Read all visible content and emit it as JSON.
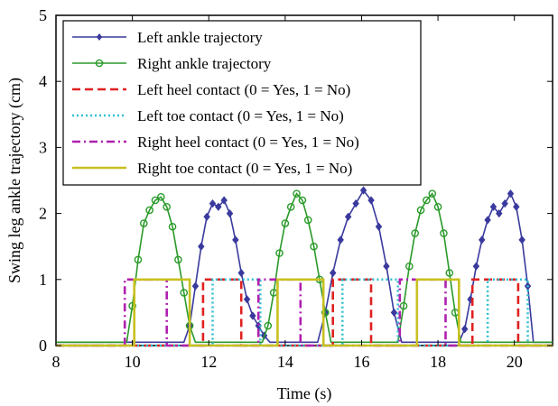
{
  "chart_data": {
    "type": "line",
    "title": "",
    "xlabel": "Time (s)",
    "ylabel": "Swing leg ankle trajectory (cm)",
    "xlim": [
      8,
      21
    ],
    "ylim": [
      0,
      5
    ],
    "xticks": [
      8,
      10,
      12,
      14,
      16,
      18,
      20
    ],
    "yticks": [
      0,
      1,
      2,
      3,
      4,
      5
    ],
    "legend_position": "top-left",
    "grid": false,
    "series": [
      {
        "name": "Left ankle trajectory",
        "color": "#3a3a9e",
        "style": "solid",
        "marker": "diamond",
        "x": [
          8.0,
          11.35,
          11.5,
          11.65,
          11.8,
          11.95,
          12.1,
          12.25,
          12.4,
          12.55,
          12.7,
          12.85,
          13.0,
          13.15,
          13.3,
          13.45,
          13.6,
          14.85,
          15.05,
          15.25,
          15.45,
          15.65,
          15.85,
          16.05,
          16.25,
          16.45,
          16.65,
          16.85,
          17.05,
          18.55,
          18.7,
          18.85,
          19.0,
          19.15,
          19.3,
          19.45,
          19.6,
          19.75,
          19.9,
          20.05,
          20.2,
          20.35,
          20.5,
          21.0
        ],
        "y": [
          0.05,
          0.05,
          0.3,
          0.9,
          1.5,
          1.95,
          2.15,
          2.1,
          2.2,
          2.0,
          1.6,
          1.1,
          0.7,
          0.45,
          0.3,
          0.15,
          0.05,
          0.05,
          0.5,
          1.1,
          1.6,
          1.95,
          2.15,
          2.35,
          2.2,
          1.8,
          1.2,
          0.5,
          0.05,
          0.05,
          0.25,
          0.7,
          1.2,
          1.6,
          1.9,
          2.1,
          2.0,
          2.15,
          2.3,
          2.1,
          1.6,
          0.9,
          0.05,
          0.05
        ]
      },
      {
        "name": "Right ankle trajectory",
        "color": "#2a9a2a",
        "style": "solid",
        "marker": "circle",
        "x": [
          8.0,
          9.85,
          10.0,
          10.15,
          10.3,
          10.45,
          10.6,
          10.75,
          10.9,
          11.05,
          11.2,
          11.35,
          11.5,
          11.65,
          13.4,
          13.55,
          13.7,
          13.85,
          14.0,
          14.15,
          14.3,
          14.45,
          14.6,
          14.75,
          14.9,
          15.05,
          15.2,
          16.95,
          17.1,
          17.25,
          17.4,
          17.55,
          17.7,
          17.85,
          18.0,
          18.15,
          18.3,
          18.45,
          18.6,
          21.0
        ],
        "y": [
          0.05,
          0.05,
          0.6,
          1.3,
          1.85,
          2.05,
          2.2,
          2.25,
          2.1,
          1.8,
          1.3,
          0.8,
          0.3,
          0.05,
          0.05,
          0.3,
          0.8,
          1.4,
          1.85,
          2.1,
          2.3,
          2.2,
          1.9,
          1.5,
          1.0,
          0.5,
          0.05,
          0.05,
          0.6,
          1.2,
          1.7,
          2.05,
          2.2,
          2.3,
          2.1,
          1.7,
          1.1,
          0.5,
          0.05,
          0.05
        ]
      },
      {
        "name": "Left heel contact (0 = Yes, 1 = No)",
        "color": "#e02020",
        "style": "dashed",
        "x": [
          8.0,
          11.85,
          11.85,
          12.85,
          12.85,
          15.25,
          15.25,
          16.25,
          16.25,
          18.9,
          18.9,
          20.1,
          20.1,
          21.0
        ],
        "y": [
          0,
          0,
          1,
          1,
          0,
          0,
          1,
          1,
          0,
          0,
          1,
          1,
          0,
          0
        ]
      },
      {
        "name": "Left toe contact (0 = Yes, 1 = No)",
        "color": "#30c0d0",
        "style": "dotted",
        "x": [
          8.0,
          12.1,
          12.1,
          13.35,
          13.35,
          15.5,
          15.5,
          16.95,
          16.95,
          19.3,
          19.3,
          20.35,
          20.35,
          21.0
        ],
        "y": [
          0,
          0,
          1,
          1,
          0,
          0,
          1,
          1,
          0,
          0,
          1,
          1,
          0,
          0
        ]
      },
      {
        "name": "Right heel contact (0 = Yes, 1 = No)",
        "color": "#b020b0",
        "style": "dashdot",
        "x": [
          8.0,
          9.8,
          9.8,
          10.9,
          10.9,
          13.3,
          13.3,
          14.4,
          14.4,
          17.0,
          17.0,
          18.2,
          18.2,
          21.0
        ],
        "y": [
          0,
          0,
          1,
          1,
          0,
          0,
          1,
          1,
          0,
          0,
          1,
          1,
          0,
          0
        ]
      },
      {
        "name": "Right toe contact (0 = Yes, 1 = No)",
        "color": "#c8c020",
        "style": "solid",
        "x": [
          8.0,
          10.05,
          10.05,
          11.5,
          11.5,
          13.8,
          13.8,
          15.0,
          15.0,
          17.45,
          17.45,
          18.55,
          18.55,
          21.0
        ],
        "y": [
          0,
          0,
          1,
          1,
          0,
          0,
          1,
          1,
          0,
          0,
          1,
          1,
          0,
          0
        ]
      }
    ]
  }
}
